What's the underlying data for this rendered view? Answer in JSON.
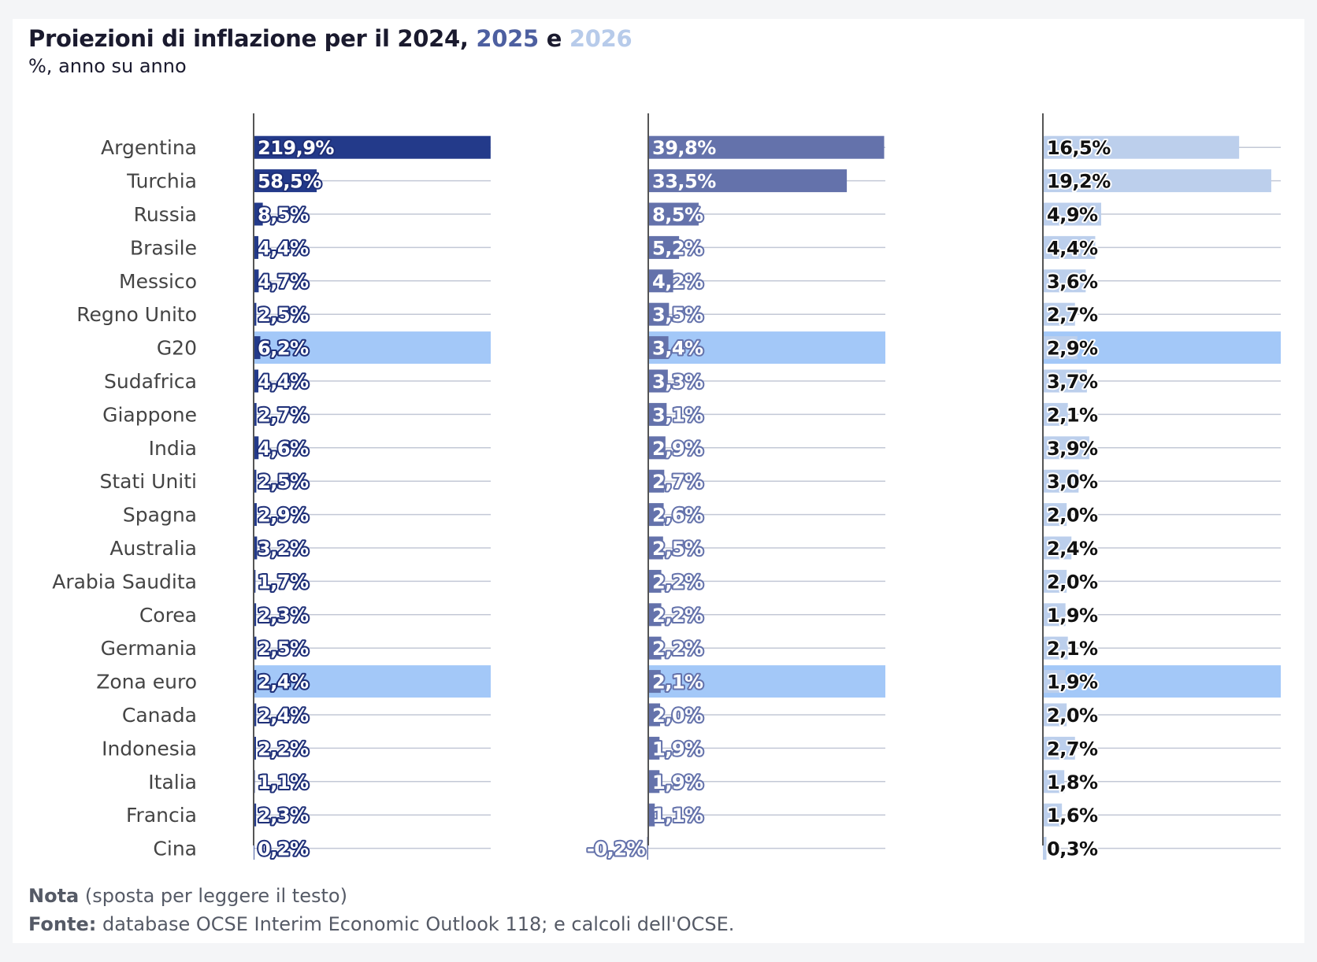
{
  "title": {
    "part1": "Proiezioni di inflazione per il 2024,",
    "year2": "2025",
    "connector": "e",
    "year3": "2026"
  },
  "subtitle": "%, anno su anno",
  "note": {
    "label": "Nota",
    "text": "(sposta per leggere il testo)"
  },
  "source": {
    "label": "Fonte:",
    "text": "database OCSE Interim Economic Outlook 118; e calcoli dell'OCSE."
  },
  "colors": {
    "s2024": "#233a8a",
    "s2025": "#6472ab",
    "s2026": "#bccfec",
    "highlight": "#a3c8f8",
    "label_2026": "#111111",
    "halo_dark": "#1e2f78",
    "halo_light": "#ffffff",
    "gridline": "#c3c8d6",
    "axis": "#555555",
    "country_text": "#444444"
  },
  "chart_data": {
    "type": "bar",
    "orientation": "horizontal",
    "categories": [
      "Argentina",
      "Turchia",
      "Russia",
      "Brasile",
      "Messico",
      "Regno Unito",
      "G20",
      "Sudafrica",
      "Giappone",
      "India",
      "Stati Uniti",
      "Spagna",
      "Australia",
      "Arabia Saudita",
      "Corea",
      "Germania",
      "Zona euro",
      "Canada",
      "Indonesia",
      "Italia",
      "Francia",
      "Cina"
    ],
    "highlighted": [
      "G20",
      "Zona euro"
    ],
    "series": [
      {
        "name": "2024",
        "values": [
          219.9,
          58.5,
          8.5,
          4.4,
          4.7,
          2.5,
          6.2,
          4.4,
          2.7,
          4.6,
          2.5,
          2.9,
          3.2,
          1.7,
          2.3,
          2.5,
          2.4,
          2.4,
          2.2,
          1.1,
          2.3,
          0.2
        ],
        "labels": [
          "219,9%",
          "58,5%",
          "8,5%",
          "4,4%",
          "4,7%",
          "2,5%",
          "6,2%",
          "4,4%",
          "2,7%",
          "4,6%",
          "2,5%",
          "2,9%",
          "3,2%",
          "1,7%",
          "2,3%",
          "2,5%",
          "2,4%",
          "2,4%",
          "2,2%",
          "1,1%",
          "2,3%",
          "0,2%"
        ]
      },
      {
        "name": "2025",
        "values": [
          39.8,
          33.5,
          8.5,
          5.2,
          4.2,
          3.5,
          3.4,
          3.3,
          3.1,
          2.9,
          2.7,
          2.6,
          2.5,
          2.2,
          2.2,
          2.2,
          2.1,
          2.0,
          1.9,
          1.9,
          1.1,
          -0.2
        ],
        "labels": [
          "39,8%",
          "33,5%",
          "8,5%",
          "5,2%",
          "4,2%",
          "3,5%",
          "3,4%",
          "3,3%",
          "3,1%",
          "2,9%",
          "2,7%",
          "2,6%",
          "2,5%",
          "2,2%",
          "2,2%",
          "2,2%",
          "2,1%",
          "2,0%",
          "1,9%",
          "1,9%",
          "1,1%",
          "-0,2%"
        ]
      },
      {
        "name": "2026",
        "values": [
          16.5,
          19.2,
          4.9,
          4.4,
          3.6,
          2.7,
          2.9,
          3.7,
          2.1,
          3.9,
          3.0,
          2.0,
          2.4,
          2.0,
          1.9,
          2.1,
          1.9,
          2.0,
          2.7,
          1.8,
          1.6,
          0.3
        ],
        "labels": [
          "16,5%",
          "19,2%",
          "4,9%",
          "4,4%",
          "3,6%",
          "2,7%",
          "2,9%",
          "3,7%",
          "2,1%",
          "3,9%",
          "3,0%",
          "2,0%",
          "2,4%",
          "2,0%",
          "1,9%",
          "2,1%",
          "1,9%",
          "2,0%",
          "2,7%",
          "1,8%",
          "1,6%",
          "0,3%"
        ]
      }
    ],
    "xlim": [
      [
        0,
        220
      ],
      [
        0,
        40
      ],
      [
        0,
        20
      ]
    ]
  }
}
